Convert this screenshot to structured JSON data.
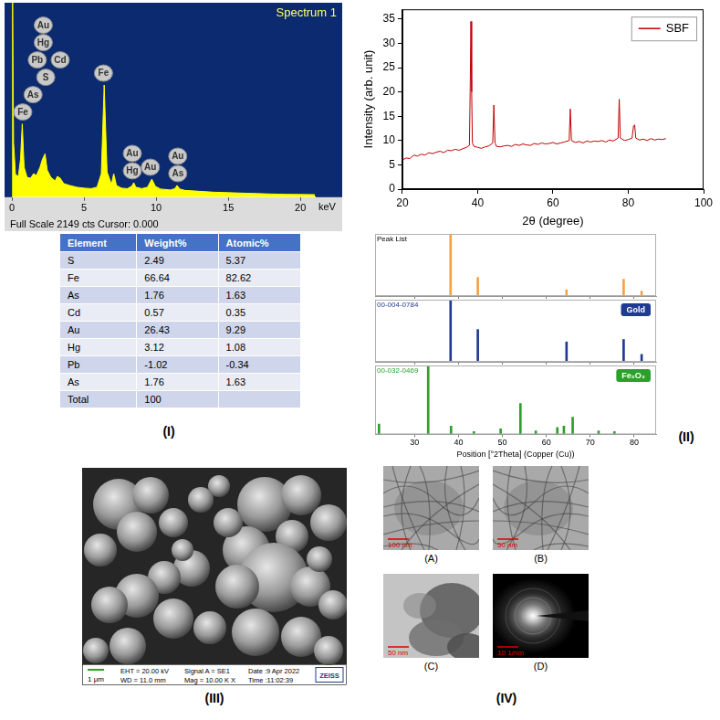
{
  "chart_data": [
    {
      "type": "spectrum",
      "title": "Spectrum 1",
      "subtitle": "Full Scale 2149 cts Cursor: 0.000",
      "x_label": "keV",
      "x": [
        0,
        0.05,
        0.12,
        0.25,
        0.45,
        0.6,
        0.72,
        0.85,
        1.05,
        1.3,
        1.5,
        1.7,
        1.95,
        2.12,
        2.3,
        2.45,
        2.7,
        3.0,
        3.15,
        3.35,
        3.6,
        4.0,
        4.5,
        5.0,
        5.5,
        5.9,
        6.2,
        6.4,
        6.6,
        6.9,
        7.06,
        7.25,
        7.6,
        8.0,
        8.3,
        8.45,
        8.6,
        9.0,
        9.4,
        9.7,
        9.95,
        10.3,
        11.0,
        11.3,
        11.45,
        11.65,
        12.0,
        13.0,
        14.0,
        15.0,
        16.0,
        17.0,
        18.0,
        19.0,
        20.0,
        21.0
      ],
      "values": [
        0,
        2149,
        600,
        250,
        230,
        420,
        810,
        330,
        220,
        210,
        260,
        240,
        330,
        420,
        480,
        300,
        220,
        180,
        230,
        210,
        150,
        130,
        110,
        100,
        95,
        110,
        260,
        1240,
        280,
        140,
        260,
        130,
        100,
        95,
        120,
        160,
        110,
        95,
        110,
        200,
        120,
        90,
        80,
        95,
        130,
        90,
        75,
        65,
        55,
        50,
        45,
        40,
        35,
        32,
        30,
        28
      ],
      "color": "#ffff00",
      "xlim": [
        0,
        21
      ],
      "xticks": [
        0,
        5,
        10,
        15,
        20
      ],
      "ylim": [
        0,
        2149
      ],
      "tick_labels": "x",
      "grid": false,
      "annotations": [
        {
          "text": "Fe",
          "x": 0.76
        },
        {
          "text": "As",
          "x": 1.47
        },
        {
          "text": "S",
          "x": 2.35
        },
        {
          "text": "Cd",
          "x": 3.35
        },
        {
          "text": "Pb",
          "x": 1.76
        },
        {
          "text": "Hg",
          "x": 2.18
        },
        {
          "text": "Au",
          "x": 2.18
        },
        {
          "text": "Fe",
          "x": 6.35
        },
        {
          "text": "Hg",
          "x": 8.35
        },
        {
          "text": "Au",
          "x": 8.35
        },
        {
          "text": "Au",
          "x": 9.6
        },
        {
          "text": "As",
          "x": 11.5
        },
        {
          "text": "Au",
          "x": 11.5
        }
      ]
    },
    {
      "type": "line",
      "x": [
        20,
        21,
        22,
        23,
        24,
        25,
        26,
        27,
        28,
        29,
        30,
        31,
        32,
        33,
        34,
        35,
        36,
        37,
        37.8,
        38.0,
        38.2,
        38.4,
        38.6,
        39,
        40,
        41,
        42,
        43,
        44.0,
        44.3,
        44.6,
        45,
        46,
        47,
        48,
        49,
        50,
        51,
        52,
        53,
        54,
        55,
        56,
        57,
        58,
        59,
        60,
        61,
        62,
        63,
        64.3,
        64.6,
        64.9,
        66,
        67,
        68,
        69,
        70,
        71,
        72,
        73,
        74,
        75,
        76,
        77.3,
        77.6,
        77.9,
        79,
        80,
        81.0,
        81.4,
        81.7,
        82.0,
        83,
        84,
        85,
        86,
        87,
        88,
        89,
        90
      ],
      "series": [
        {
          "name": "SBF",
          "color": "#c00000",
          "values": [
            6.0,
            6.4,
            6.3,
            7.0,
            6.8,
            7.2,
            7.0,
            7.5,
            7.3,
            7.6,
            7.8,
            7.5,
            8.0,
            7.9,
            8.2,
            8.0,
            8.3,
            8.6,
            9.0,
            20.0,
            34.5,
            20.0,
            9.5,
            8.8,
            8.6,
            8.4,
            8.7,
            8.9,
            9.5,
            17.3,
            9.5,
            8.8,
            8.7,
            8.9,
            9.0,
            8.8,
            9.2,
            9.0,
            9.3,
            9.1,
            9.0,
            9.4,
            9.2,
            9.5,
            9.3,
            9.4,
            9.6,
            9.3,
            9.5,
            9.7,
            10.0,
            16.5,
            10.0,
            9.6,
            9.8,
            9.5,
            9.9,
            9.7,
            9.9,
            9.8,
            10.0,
            9.7,
            10.1,
            9.9,
            10.5,
            18.5,
            10.5,
            10.0,
            10.2,
            10.5,
            13.0,
            13.2,
            10.5,
            10.1,
            10.3,
            10.0,
            10.4,
            10.1,
            10.3,
            10.2,
            10.4
          ]
        }
      ],
      "xlim": [
        20,
        100
      ],
      "xticks": [
        20,
        40,
        60,
        80,
        100
      ],
      "ylim": [
        0,
        37
      ],
      "yticks": [
        0,
        5,
        10,
        15,
        20,
        25,
        30,
        35
      ],
      "x_label": "2θ (degree)",
      "y_label": "Intensity (arb. unit)",
      "legend": "upper right",
      "grid": false
    },
    {
      "type": "stick",
      "title": "Peak List",
      "x": [
        38.2,
        44.4,
        64.6,
        77.6,
        81.7
      ],
      "values": [
        100,
        30,
        10,
        27,
        8
      ],
      "color": "#f4a340",
      "xlim": [
        21,
        85
      ],
      "xticks": [
        30,
        40,
        50,
        60,
        70,
        80
      ],
      "ylim": [
        0,
        100
      ],
      "tick_labels": false
    },
    {
      "type": "stick",
      "title": "00-004-0784",
      "annotations": [
        "Gold"
      ],
      "x": [
        38.2,
        44.4,
        64.6,
        77.6,
        81.7
      ],
      "values": [
        100,
        52,
        32,
        36,
        12
      ],
      "color": "#1f3a93",
      "xlim": [
        21,
        85
      ],
      "xticks": [
        30,
        40,
        50,
        60,
        70,
        80
      ],
      "ylim": [
        0,
        100
      ],
      "tick_labels": false
    },
    {
      "type": "stick",
      "title": "00-032-0469",
      "annotations": [
        "Fe₂O₃"
      ],
      "x": [
        21.9,
        33.1,
        38.3,
        43.5,
        49.6,
        54.1,
        57.6,
        62.5,
        64.0,
        66.0,
        71.9,
        75.5
      ],
      "values": [
        15,
        100,
        12,
        4,
        8,
        45,
        5,
        10,
        12,
        25,
        5,
        4
      ],
      "color": "#2ca02c",
      "xlim": [
        21,
        85
      ],
      "xticks": [
        30,
        40,
        50,
        60,
        70,
        80
      ],
      "ylim": [
        0,
        100
      ],
      "tick_labels": "x",
      "x_label": "Position [°2Theta] (Copper (Cu))"
    }
  ],
  "table": {
    "columns": [
      "Element",
      "Weight%",
      "Atomic%"
    ],
    "rows": [
      [
        "S",
        2.49,
        5.37
      ],
      [
        "Fe",
        66.64,
        82.62
      ],
      [
        "As",
        1.76,
        1.63
      ],
      [
        "Cd",
        0.57,
        0.35
      ],
      [
        "Au",
        26.43,
        9.29
      ],
      [
        "Hg",
        3.12,
        1.08
      ],
      [
        "Pb",
        -1.02,
        -0.34
      ],
      [
        "As",
        1.76,
        1.63
      ],
      [
        "Total",
        100,
        null
      ]
    ]
  },
  "panel_labels": [
    "(I)",
    "(II)",
    "(III)",
    "(IV)"
  ],
  "sem_image": {
    "scale_bar": "1 μm",
    "info": [
      "EHT = 20.00 kV",
      "WD = 11.0 mm",
      "Signal A = SE1",
      "Mag = 10.00 K X",
      "Date :9 Apr 2022",
      "Time :11:02:39"
    ],
    "brand": "ZEISS"
  },
  "tem_images": [
    {
      "label": "(A)",
      "scale_bar": "100 nm"
    },
    {
      "label": "(B)",
      "scale_bar": "50 nm"
    },
    {
      "label": "(C)",
      "scale_bar": "50 nm"
    },
    {
      "label": "(D)",
      "scale_bar": "10 1/nm"
    }
  ]
}
